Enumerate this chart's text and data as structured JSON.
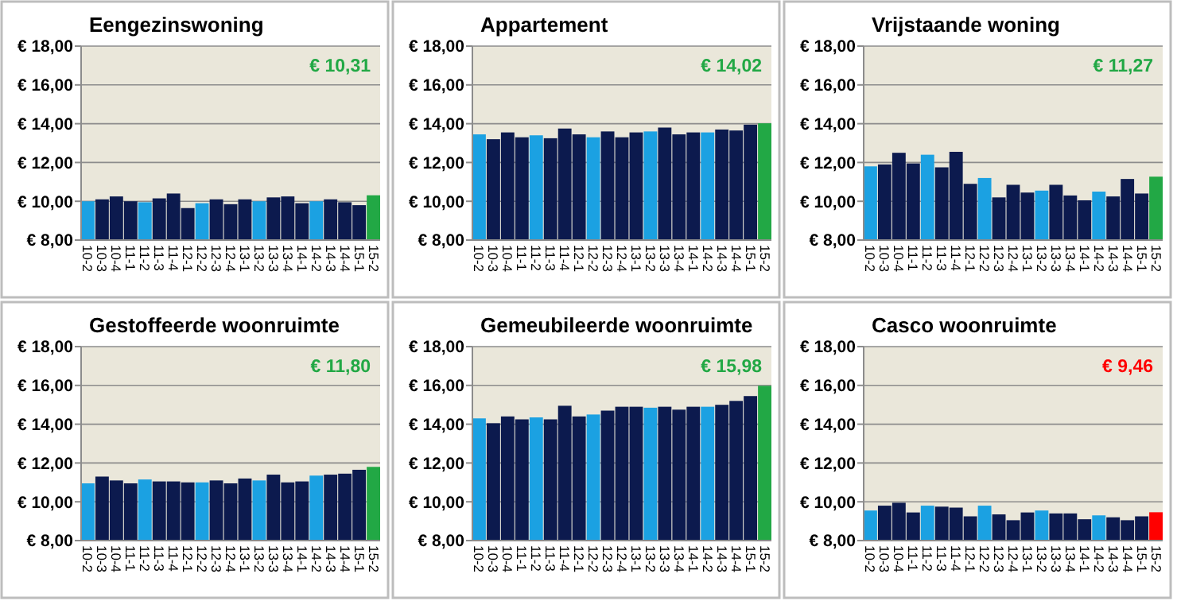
{
  "chart_data": [
    {
      "type": "bar",
      "title": "Eengezinswoning",
      "categories": [
        "10-2",
        "10-3",
        "10-4",
        "11-1",
        "11-2",
        "11-3",
        "11-4",
        "12-1",
        "12-2",
        "12-3",
        "12-4",
        "13-1",
        "13-2",
        "13-3",
        "13-4",
        "14-1",
        "14-2",
        "14-3",
        "14-4",
        "15-1",
        "15-2"
      ],
      "values": [
        10.0,
        10.1,
        10.25,
        10.0,
        9.95,
        10.15,
        10.4,
        9.65,
        9.9,
        10.1,
        9.85,
        10.1,
        10.0,
        10.2,
        10.25,
        9.9,
        10.0,
        10.1,
        9.95,
        9.8,
        10.31
      ],
      "colors": [
        "#1ba1e2",
        "#0c1a4e",
        "#0c1a4e",
        "#0c1a4e",
        "#1ba1e2",
        "#0c1a4e",
        "#0c1a4e",
        "#0c1a4e",
        "#1ba1e2",
        "#0c1a4e",
        "#0c1a4e",
        "#0c1a4e",
        "#1ba1e2",
        "#0c1a4e",
        "#0c1a4e",
        "#0c1a4e",
        "#1ba1e2",
        "#0c1a4e",
        "#0c1a4e",
        "#0c1a4e",
        "#22a845"
      ],
      "annotations": [
        "€ 10,31"
      ],
      "ylim": [
        8,
        18
      ],
      "yticks": [
        {
          "value": 8,
          "label": "€ 8,00"
        },
        {
          "value": 10,
          "label": "€ 10,00"
        },
        {
          "value": 12,
          "label": "€ 12,00"
        },
        {
          "value": 14,
          "label": "€ 14,00"
        },
        {
          "value": 16,
          "label": "€ 16,00"
        },
        {
          "value": 18,
          "label": "€ 18,00"
        }
      ],
      "grid": "y"
    },
    {
      "type": "bar",
      "title": "Appartement",
      "categories": [
        "10-2",
        "10-3",
        "10-4",
        "11-1",
        "11-2",
        "11-3",
        "11-4",
        "12-1",
        "12-2",
        "12-3",
        "12-4",
        "13-1",
        "13-2",
        "13-3",
        "13-4",
        "14-1",
        "14-2",
        "14-3",
        "14-4",
        "15-1",
        "15-2"
      ],
      "values": [
        13.45,
        13.2,
        13.55,
        13.3,
        13.4,
        13.25,
        13.75,
        13.45,
        13.3,
        13.6,
        13.3,
        13.55,
        13.6,
        13.8,
        13.45,
        13.55,
        13.55,
        13.7,
        13.65,
        13.95,
        14.02
      ],
      "colors": [
        "#1ba1e2",
        "#0c1a4e",
        "#0c1a4e",
        "#0c1a4e",
        "#1ba1e2",
        "#0c1a4e",
        "#0c1a4e",
        "#0c1a4e",
        "#1ba1e2",
        "#0c1a4e",
        "#0c1a4e",
        "#0c1a4e",
        "#1ba1e2",
        "#0c1a4e",
        "#0c1a4e",
        "#0c1a4e",
        "#1ba1e2",
        "#0c1a4e",
        "#0c1a4e",
        "#0c1a4e",
        "#22a845"
      ],
      "annotations": [
        "€ 14,02"
      ],
      "ylim": [
        8,
        18
      ],
      "yticks": [
        {
          "value": 8,
          "label": "€ 8,00"
        },
        {
          "value": 10,
          "label": "€ 10,00"
        },
        {
          "value": 12,
          "label": "€ 12,00"
        },
        {
          "value": 14,
          "label": "€ 14,00"
        },
        {
          "value": 16,
          "label": "€ 16,00"
        },
        {
          "value": 18,
          "label": "€ 18,00"
        }
      ],
      "grid": "y"
    },
    {
      "type": "bar",
      "title": "Vrijstaande woning",
      "categories": [
        "10-2",
        "10-3",
        "10-4",
        "11-1",
        "11-2",
        "11-3",
        "11-4",
        "12-1",
        "12-2",
        "12-3",
        "12-4",
        "13-1",
        "13-2",
        "13-3",
        "13-4",
        "14-1",
        "14-2",
        "14-3",
        "14-4",
        "15-1",
        "15-2"
      ],
      "values": [
        11.8,
        11.9,
        12.5,
        11.95,
        12.4,
        11.75,
        12.55,
        10.9,
        11.2,
        10.2,
        10.85,
        10.45,
        10.55,
        10.85,
        10.3,
        10.05,
        10.5,
        10.25,
        11.15,
        10.4,
        11.27
      ],
      "colors": [
        "#1ba1e2",
        "#0c1a4e",
        "#0c1a4e",
        "#0c1a4e",
        "#1ba1e2",
        "#0c1a4e",
        "#0c1a4e",
        "#0c1a4e",
        "#1ba1e2",
        "#0c1a4e",
        "#0c1a4e",
        "#0c1a4e",
        "#1ba1e2",
        "#0c1a4e",
        "#0c1a4e",
        "#0c1a4e",
        "#1ba1e2",
        "#0c1a4e",
        "#0c1a4e",
        "#0c1a4e",
        "#22a845"
      ],
      "annotations": [
        "€ 11,27"
      ],
      "ylim": [
        8,
        18
      ],
      "yticks": [
        {
          "value": 8,
          "label": "€ 8,00"
        },
        {
          "value": 10,
          "label": "€ 10,00"
        },
        {
          "value": 12,
          "label": "€ 12,00"
        },
        {
          "value": 14,
          "label": "€ 14,00"
        },
        {
          "value": 16,
          "label": "€ 16,00"
        },
        {
          "value": 18,
          "label": "€ 18,00"
        }
      ],
      "grid": "y"
    },
    {
      "type": "bar",
      "title": "Gestoffeerde woonruimte",
      "categories": [
        "10-2",
        "10-3",
        "10-4",
        "11-1",
        "11-2",
        "11-3",
        "11-4",
        "12-1",
        "12-2",
        "12-3",
        "12-4",
        "13-1",
        "13-2",
        "13-3",
        "13-4",
        "14-1",
        "14-2",
        "14-3",
        "14-4",
        "15-1",
        "15-2"
      ],
      "values": [
        10.95,
        11.3,
        11.1,
        10.95,
        11.15,
        11.05,
        11.05,
        11.0,
        11.0,
        11.1,
        10.95,
        11.2,
        11.1,
        11.4,
        11.0,
        11.05,
        11.35,
        11.4,
        11.45,
        11.65,
        11.8
      ],
      "colors": [
        "#1ba1e2",
        "#0c1a4e",
        "#0c1a4e",
        "#0c1a4e",
        "#1ba1e2",
        "#0c1a4e",
        "#0c1a4e",
        "#0c1a4e",
        "#1ba1e2",
        "#0c1a4e",
        "#0c1a4e",
        "#0c1a4e",
        "#1ba1e2",
        "#0c1a4e",
        "#0c1a4e",
        "#0c1a4e",
        "#1ba1e2",
        "#0c1a4e",
        "#0c1a4e",
        "#0c1a4e",
        "#22a845"
      ],
      "annotations": [
        "€ 11,80"
      ],
      "ylim": [
        8,
        18
      ],
      "yticks": [
        {
          "value": 8,
          "label": "€ 8,00"
        },
        {
          "value": 10,
          "label": "€ 10,00"
        },
        {
          "value": 12,
          "label": "€ 12,00"
        },
        {
          "value": 14,
          "label": "€ 14,00"
        },
        {
          "value": 16,
          "label": "€ 16,00"
        },
        {
          "value": 18,
          "label": "€ 18,00"
        }
      ],
      "grid": "y"
    },
    {
      "type": "bar",
      "title": "Gemeubileerde woonruimte",
      "categories": [
        "10-2",
        "10-3",
        "10-4",
        "11-1",
        "11-2",
        "11-3",
        "11-4",
        "12-1",
        "12-2",
        "12-3",
        "12-4",
        "13-1",
        "13-2",
        "13-3",
        "13-4",
        "14-1",
        "14-2",
        "14-3",
        "14-4",
        "15-1",
        "15-2"
      ],
      "values": [
        14.3,
        14.05,
        14.4,
        14.25,
        14.35,
        14.25,
        14.95,
        14.4,
        14.5,
        14.7,
        14.9,
        14.9,
        14.85,
        14.9,
        14.75,
        14.9,
        14.9,
        15.0,
        15.2,
        15.45,
        15.98
      ],
      "colors": [
        "#1ba1e2",
        "#0c1a4e",
        "#0c1a4e",
        "#0c1a4e",
        "#1ba1e2",
        "#0c1a4e",
        "#0c1a4e",
        "#0c1a4e",
        "#1ba1e2",
        "#0c1a4e",
        "#0c1a4e",
        "#0c1a4e",
        "#1ba1e2",
        "#0c1a4e",
        "#0c1a4e",
        "#0c1a4e",
        "#1ba1e2",
        "#0c1a4e",
        "#0c1a4e",
        "#0c1a4e",
        "#22a845"
      ],
      "annotations": [
        "€ 15,98"
      ],
      "ylim": [
        8,
        18
      ],
      "yticks": [
        {
          "value": 8,
          "label": "€ 8,00"
        },
        {
          "value": 10,
          "label": "€ 10,00"
        },
        {
          "value": 12,
          "label": "€ 12,00"
        },
        {
          "value": 14,
          "label": "€ 14,00"
        },
        {
          "value": 16,
          "label": "€ 16,00"
        },
        {
          "value": 18,
          "label": "€ 18,00"
        }
      ],
      "grid": "y"
    },
    {
      "type": "bar",
      "title": "Casco woonruimte",
      "categories": [
        "10-2",
        "10-3",
        "10-4",
        "11-1",
        "11-2",
        "11-3",
        "11-4",
        "12-1",
        "12-2",
        "12-3",
        "12-4",
        "13-1",
        "13-2",
        "13-3",
        "13-4",
        "14-1",
        "14-2",
        "14-3",
        "14-4",
        "15-1",
        "15-2"
      ],
      "values": [
        9.55,
        9.8,
        9.95,
        9.45,
        9.8,
        9.75,
        9.7,
        9.25,
        9.8,
        9.35,
        9.05,
        9.45,
        9.55,
        9.4,
        9.4,
        9.1,
        9.3,
        9.2,
        9.05,
        9.25,
        9.46
      ],
      "colors": [
        "#1ba1e2",
        "#0c1a4e",
        "#0c1a4e",
        "#0c1a4e",
        "#1ba1e2",
        "#0c1a4e",
        "#0c1a4e",
        "#0c1a4e",
        "#1ba1e2",
        "#0c1a4e",
        "#0c1a4e",
        "#0c1a4e",
        "#1ba1e2",
        "#0c1a4e",
        "#0c1a4e",
        "#0c1a4e",
        "#1ba1e2",
        "#0c1a4e",
        "#0c1a4e",
        "#0c1a4e",
        "#ff0000"
      ],
      "annotations": [
        "€ 9,46"
      ],
      "ylim": [
        8,
        18
      ],
      "yticks": [
        {
          "value": 8,
          "label": "€ 8,00"
        },
        {
          "value": 10,
          "label": "€ 10,00"
        },
        {
          "value": 12,
          "label": "€ 12,00"
        },
        {
          "value": 14,
          "label": "€ 14,00"
        },
        {
          "value": 16,
          "label": "€ 16,00"
        },
        {
          "value": 18,
          "label": "€ 18,00"
        }
      ],
      "grid": "y"
    }
  ]
}
